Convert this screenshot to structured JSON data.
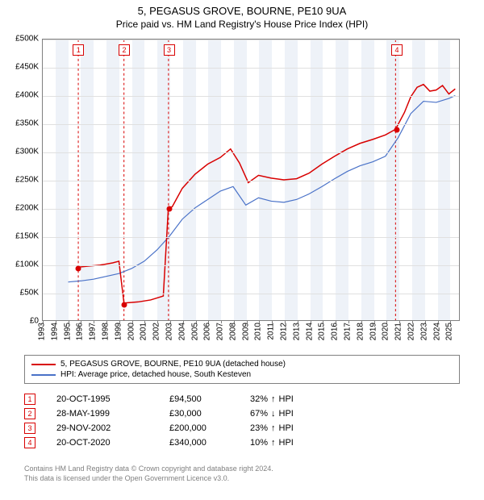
{
  "title": "5, PEGASUS GROVE, BOURNE, PE10 9UA",
  "subtitle": "Price paid vs. HM Land Registry's House Price Index (HPI)",
  "chart": {
    "type": "line",
    "background_color": "#ffffff",
    "grid_color": "#e0e0e0",
    "border_color": "#808080",
    "band_color": "#eef2f8",
    "ylim": [
      0,
      500000
    ],
    "ytick_step": 50000,
    "y_labels": [
      "£0",
      "£50K",
      "£100K",
      "£150K",
      "£200K",
      "£250K",
      "£300K",
      "£350K",
      "£400K",
      "£450K",
      "£500K"
    ],
    "xlim": [
      1993,
      2025.8
    ],
    "x_labels": [
      "1993",
      "1994",
      "1995",
      "1996",
      "1997",
      "1998",
      "1999",
      "2000",
      "2001",
      "2002",
      "2003",
      "2004",
      "2005",
      "2006",
      "2007",
      "2008",
      "2009",
      "2010",
      "2011",
      "2012",
      "2013",
      "2014",
      "2015",
      "2016",
      "2017",
      "2018",
      "2019",
      "2020",
      "2021",
      "2022",
      "2023",
      "2024",
      "2025"
    ],
    "band_years": [
      1994,
      1996,
      1998,
      2000,
      2002,
      2004,
      2006,
      2008,
      2010,
      2012,
      2014,
      2016,
      2018,
      2020,
      2022,
      2024
    ],
    "label_fontsize": 10,
    "title_fontsize": 13
  },
  "series_prop": {
    "label": "5, PEGASUS GROVE, BOURNE, PE10 9UA (detached house)",
    "color": "#d80000",
    "width": 1.5,
    "data": [
      [
        1995.8,
        94500
      ],
      [
        1996.5,
        96000
      ],
      [
        1997.5,
        98000
      ],
      [
        1998.5,
        102000
      ],
      [
        1999.0,
        105000
      ],
      [
        1999.4,
        30000
      ],
      [
        1999.6,
        30800
      ],
      [
        2000.5,
        32500
      ],
      [
        2001.5,
        36000
      ],
      [
        2002.5,
        43000
      ],
      [
        2002.9,
        200000
      ],
      [
        2003.2,
        202000
      ],
      [
        2004.0,
        235000
      ],
      [
        2005.0,
        260000
      ],
      [
        2006.0,
        278000
      ],
      [
        2007.0,
        290000
      ],
      [
        2007.8,
        305000
      ],
      [
        2008.5,
        280000
      ],
      [
        2009.2,
        245000
      ],
      [
        2010.0,
        258000
      ],
      [
        2011.0,
        253000
      ],
      [
        2012.0,
        250000
      ],
      [
        2013.0,
        252000
      ],
      [
        2014.0,
        262000
      ],
      [
        2015.0,
        278000
      ],
      [
        2016.0,
        292000
      ],
      [
        2017.0,
        305000
      ],
      [
        2018.0,
        315000
      ],
      [
        2019.0,
        322000
      ],
      [
        2020.0,
        330000
      ],
      [
        2020.8,
        340000
      ],
      [
        2021.5,
        370000
      ],
      [
        2022.0,
        398000
      ],
      [
        2022.5,
        415000
      ],
      [
        2023.0,
        420000
      ],
      [
        2023.5,
        408000
      ],
      [
        2024.0,
        410000
      ],
      [
        2024.5,
        418000
      ],
      [
        2025.0,
        403000
      ],
      [
        2025.5,
        412000
      ]
    ]
  },
  "series_hpi": {
    "label": "HPI: Average price, detached house, South Kesteven",
    "color": "#4a72c8",
    "width": 1.2,
    "data": [
      [
        1995.0,
        68000
      ],
      [
        1996.0,
        70000
      ],
      [
        1997.0,
        73000
      ],
      [
        1998.0,
        78000
      ],
      [
        1999.0,
        83000
      ],
      [
        2000.0,
        92000
      ],
      [
        2001.0,
        105000
      ],
      [
        2002.0,
        125000
      ],
      [
        2003.0,
        150000
      ],
      [
        2004.0,
        180000
      ],
      [
        2005.0,
        200000
      ],
      [
        2006.0,
        215000
      ],
      [
        2007.0,
        230000
      ],
      [
        2008.0,
        238000
      ],
      [
        2009.0,
        205000
      ],
      [
        2010.0,
        218000
      ],
      [
        2011.0,
        212000
      ],
      [
        2012.0,
        210000
      ],
      [
        2013.0,
        215000
      ],
      [
        2014.0,
        225000
      ],
      [
        2015.0,
        238000
      ],
      [
        2016.0,
        252000
      ],
      [
        2017.0,
        265000
      ],
      [
        2018.0,
        275000
      ],
      [
        2019.0,
        282000
      ],
      [
        2020.0,
        292000
      ],
      [
        2021.0,
        325000
      ],
      [
        2022.0,
        368000
      ],
      [
        2023.0,
        390000
      ],
      [
        2024.0,
        388000
      ],
      [
        2025.0,
        395000
      ],
      [
        2025.5,
        400000
      ]
    ]
  },
  "markers": [
    {
      "n": "1",
      "year": 1995.8,
      "value": 94500,
      "color": "#d80000"
    },
    {
      "n": "2",
      "year": 1999.4,
      "value": 30000,
      "color": "#d80000"
    },
    {
      "n": "3",
      "year": 2002.91,
      "value": 200000,
      "color": "#d80000"
    },
    {
      "n": "4",
      "year": 2020.8,
      "value": 340000,
      "color": "#d80000"
    }
  ],
  "legend": {
    "border_color": "#808080"
  },
  "sales": [
    {
      "n": "1",
      "date": "20-OCT-1995",
      "price": "£94,500",
      "delta": "32%",
      "dir": "up",
      "note": "HPI",
      "color": "#d80000"
    },
    {
      "n": "2",
      "date": "28-MAY-1999",
      "price": "£30,000",
      "delta": "67%",
      "dir": "down",
      "note": "HPI",
      "color": "#d80000"
    },
    {
      "n": "3",
      "date": "29-NOV-2002",
      "price": "£200,000",
      "delta": "23%",
      "dir": "up",
      "note": "HPI",
      "color": "#d80000"
    },
    {
      "n": "4",
      "date": "20-OCT-2020",
      "price": "£340,000",
      "delta": "10%",
      "dir": "up",
      "note": "HPI",
      "color": "#d80000"
    }
  ],
  "footnote": {
    "line1": "Contains HM Land Registry data © Crown copyright and database right 2024.",
    "line2": "This data is licensed under the Open Government Licence v3.0.",
    "color": "#808080"
  },
  "arrows": {
    "up": "↑",
    "down": "↓"
  }
}
